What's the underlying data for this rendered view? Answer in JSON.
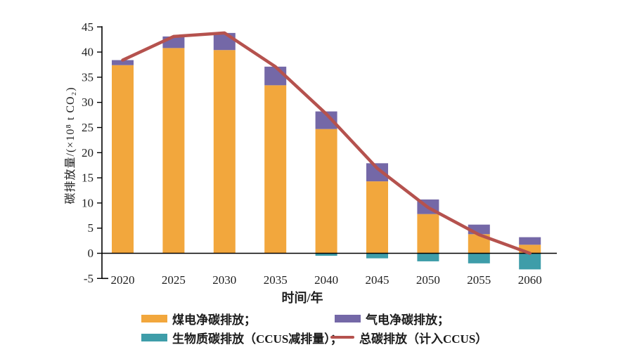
{
  "chart_data": {
    "type": "bar",
    "subtype": "stacked-bars-with-total-line",
    "title": "",
    "xlabel": "时间/年",
    "ylabel": "碳排放量/(×10⁸ t CO₂)",
    "ylim": [
      -5,
      45
    ],
    "yticks": [
      45,
      40,
      35,
      30,
      25,
      20,
      15,
      10,
      5,
      0,
      -5
    ],
    "grid": false,
    "axis_color": "#000000",
    "categories": [
      "2020",
      "2025",
      "2030",
      "2035",
      "2040",
      "2045",
      "2050",
      "2055",
      "2060"
    ],
    "series": [
      {
        "id": "coal",
        "name": "煤电净碳排放",
        "type": "bar",
        "color": "#F2A73D",
        "values": [
          37.4,
          40.8,
          40.4,
          33.4,
          24.7,
          14.3,
          7.8,
          3.8,
          1.7
        ]
      },
      {
        "id": "gas",
        "name": "气电净碳排放",
        "type": "bar",
        "color": "#7468A7",
        "values": [
          1.0,
          2.3,
          3.4,
          3.7,
          3.5,
          3.6,
          2.9,
          1.9,
          1.5
        ]
      },
      {
        "id": "bio",
        "name": "生物质碳排放（CCUS减排量）",
        "type": "bar",
        "color": "#3E9DA9",
        "values": [
          0,
          0,
          0,
          0,
          -0.5,
          -1.0,
          -1.6,
          -2.0,
          -3.2
        ]
      },
      {
        "id": "total",
        "name": "总碳排放（计入CCUS）",
        "type": "line",
        "color": "#B5524E",
        "values": [
          38.4,
          43.1,
          43.8,
          37.1,
          27.7,
          16.9,
          9.1,
          3.7,
          0.0
        ]
      }
    ],
    "legend": {
      "position": "bottom",
      "items": [
        {
          "label": "煤电净碳排放；",
          "swatch": "rect",
          "color": "#F2A73D"
        },
        {
          "label": "气电净碳排放；",
          "swatch": "rect",
          "color": "#7468A7"
        },
        {
          "label": "生物质碳排放（CCUS减排量）；",
          "swatch": "rect",
          "color": "#3E9DA9"
        },
        {
          "label": "总碳排放（计入CCUS）",
          "swatch": "line",
          "color": "#B5524E"
        }
      ]
    }
  }
}
